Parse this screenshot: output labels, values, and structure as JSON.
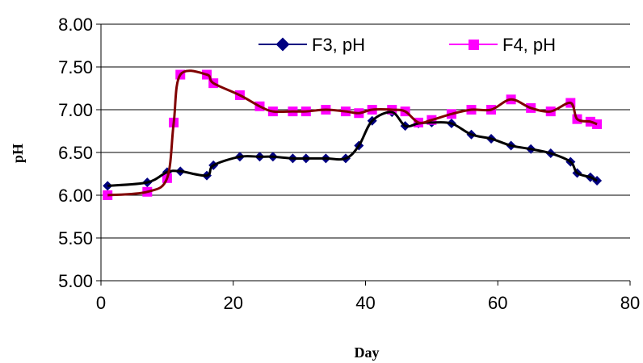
{
  "chart_data": {
    "type": "line",
    "title": "",
    "xlabel": "Day",
    "ylabel": "pH",
    "xlim": [
      0,
      80
    ],
    "ylim": [
      5.0,
      8.0
    ],
    "x_ticks": [
      "0",
      "20",
      "40",
      "60",
      "80"
    ],
    "y_ticks": [
      "5.00",
      "5.50",
      "6.00",
      "6.50",
      "7.00",
      "7.50",
      "8.00"
    ],
    "grid": "horizontal",
    "legend": "top-right",
    "series": [
      {
        "name": "F3, pH",
        "marker": "diamond",
        "marker_color": "#000080",
        "line_color": "#000080",
        "trend_color": "#000000",
        "x": [
          1,
          7,
          10,
          12,
          16,
          17,
          21,
          24,
          26,
          29,
          31,
          34,
          37,
          39,
          41,
          44,
          46,
          48,
          50,
          53,
          56,
          59,
          62,
          65,
          68,
          71,
          72,
          74,
          75
        ],
        "y": [
          6.11,
          6.15,
          6.27,
          6.28,
          6.23,
          6.35,
          6.45,
          6.45,
          6.45,
          6.43,
          6.43,
          6.43,
          6.43,
          6.58,
          6.87,
          6.97,
          6.81,
          6.84,
          6.85,
          6.84,
          6.71,
          6.66,
          6.58,
          6.54,
          6.49,
          6.39,
          6.26,
          6.21,
          6.17
        ]
      },
      {
        "name": "F4, pH",
        "marker": "square",
        "marker_color": "#FF00FF",
        "line_color": "#FF00FF",
        "trend_color": "#800000",
        "x": [
          1,
          7,
          10,
          11,
          12,
          16,
          17,
          21,
          24,
          26,
          29,
          31,
          34,
          37,
          39,
          41,
          44,
          46,
          48,
          50,
          53,
          56,
          59,
          62,
          65,
          68,
          71,
          72,
          74,
          75
        ],
        "y": [
          6.0,
          6.04,
          6.2,
          6.85,
          7.41,
          7.41,
          7.31,
          7.17,
          7.04,
          6.98,
          6.98,
          6.98,
          7.0,
          6.98,
          6.96,
          7.0,
          7.0,
          6.98,
          6.85,
          6.88,
          6.95,
          7.0,
          7.0,
          7.12,
          7.02,
          6.98,
          7.08,
          6.89,
          6.86,
          6.83
        ]
      }
    ]
  }
}
